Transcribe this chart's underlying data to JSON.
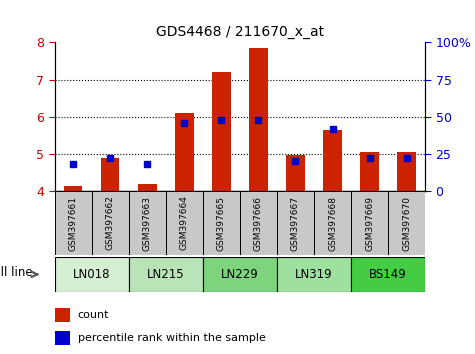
{
  "title": "GDS4468 / 211670_x_at",
  "samples": [
    "GSM397661",
    "GSM397662",
    "GSM397663",
    "GSM397664",
    "GSM397665",
    "GSM397666",
    "GSM397667",
    "GSM397668",
    "GSM397669",
    "GSM397670"
  ],
  "count_values": [
    4.15,
    4.9,
    4.2,
    6.1,
    7.2,
    7.85,
    4.98,
    5.65,
    5.05,
    5.05
  ],
  "percentile_values": [
    18,
    22,
    18,
    46,
    48,
    48,
    20,
    42,
    22,
    22
  ],
  "cell_lines": [
    {
      "name": "LN018",
      "start": 0,
      "end": 2,
      "color": "#d4efd4"
    },
    {
      "name": "LN215",
      "start": 2,
      "end": 4,
      "color": "#b8e4b8"
    },
    {
      "name": "LN229",
      "start": 4,
      "end": 6,
      "color": "#7dd47d"
    },
    {
      "name": "LN319",
      "start": 6,
      "end": 8,
      "color": "#9ee09e"
    },
    {
      "name": "BS149",
      "start": 8,
      "end": 10,
      "color": "#44cc44"
    }
  ],
  "ylim_left": [
    4.0,
    8.0
  ],
  "ylim_right": [
    0,
    100
  ],
  "yticks_left": [
    4,
    5,
    6,
    7,
    8
  ],
  "ytick_labels_right": [
    "0",
    "25",
    "50",
    "75",
    "100%"
  ],
  "bar_color": "#cc2200",
  "dot_color": "#0000cc",
  "bar_width": 0.5,
  "dot_size": 30,
  "bg_color": "#ffffff",
  "tick_label_color_left": "#cc0000",
  "tick_label_color_right": "#0000cc",
  "legend_count_color": "#cc2200",
  "legend_pct_color": "#0000cc",
  "cell_line_label": "cell line",
  "legend_count_label": "count",
  "legend_pct_label": "percentile rank within the sample",
  "baseline": 4.0,
  "gray_bg": "#c8c8c8",
  "grid_yticks": [
    5,
    6,
    7
  ]
}
